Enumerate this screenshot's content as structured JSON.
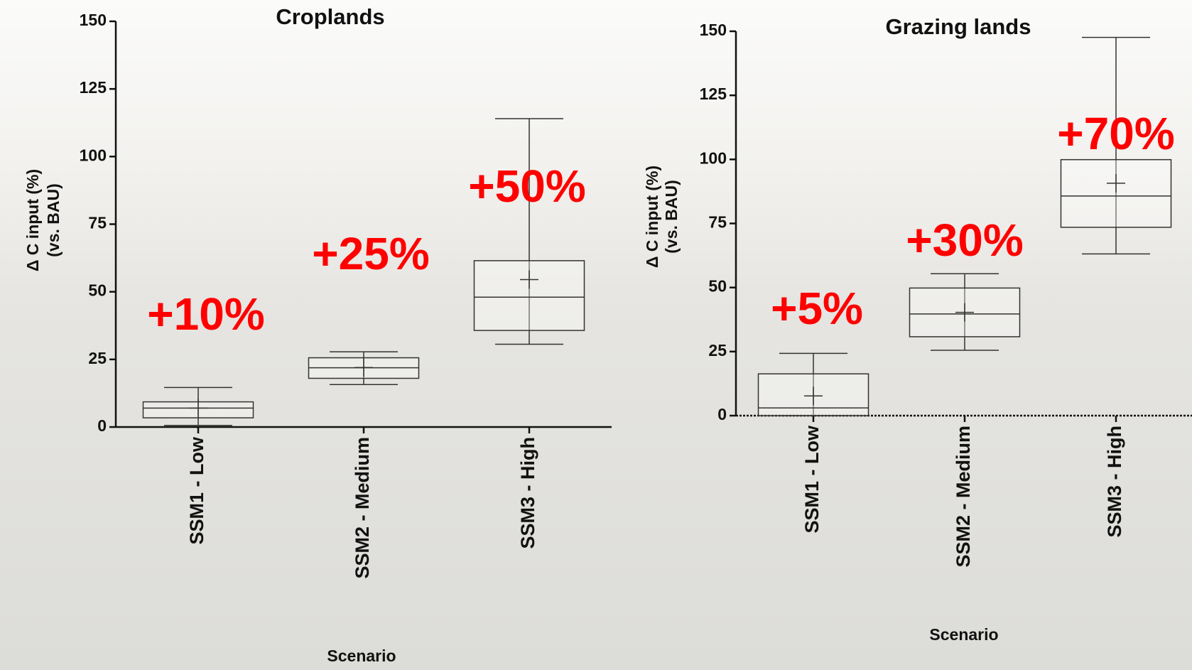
{
  "chart_data": [
    {
      "type": "box",
      "title": "Croplands",
      "ylabel": [
        "Δ C input (%)",
        "(vs. BAU)"
      ],
      "xlabel": "Scenario",
      "categories": [
        "SSM1 - Low",
        "SSM2 - Medium",
        "SSM3 - High"
      ],
      "whisker_low": [
        0.6,
        15.7,
        30.6
      ],
      "q1": [
        3.4,
        18,
        35.7
      ],
      "median": [
        7,
        21.9,
        48
      ],
      "q3": [
        9.3,
        25.6,
        61.5
      ],
      "whisker_high": [
        14.6,
        27.8,
        114
      ],
      "mean": [
        7,
        22,
        54.5
      ],
      "annotations": [
        "+10%",
        "+25%",
        "+50%"
      ],
      "annotation_color": "#ff0000",
      "color": "#333333",
      "ylim": [
        0,
        150
      ],
      "yticks": [
        0,
        25,
        50,
        75,
        100,
        125,
        150
      ]
    },
    {
      "type": "box",
      "title": "Grazing lands",
      "ylabel": [
        "Δ C input (%)",
        "(vs. BAU)"
      ],
      "xlabel": "Scenario",
      "categories": [
        "SSM1 - Low",
        "SSM2 - Medium",
        "SSM3 - High"
      ],
      "whisker_low": [
        0,
        25.5,
        63.1
      ],
      "q1": [
        0,
        30.8,
        73.5
      ],
      "median": [
        3,
        39.7,
        85.7
      ],
      "q3": [
        16.3,
        49.8,
        99.9
      ],
      "whisker_high": [
        24.3,
        55.4,
        147.6
      ],
      "mean": [
        7.7,
        40.3,
        90.7
      ],
      "annotations": [
        "+5%",
        "+30%",
        "+70%"
      ],
      "annotation_color": "#ff0000",
      "color": "#333333",
      "ylim": [
        0,
        150
      ],
      "yticks": [
        0,
        25,
        50,
        75,
        100,
        125,
        150
      ]
    }
  ]
}
